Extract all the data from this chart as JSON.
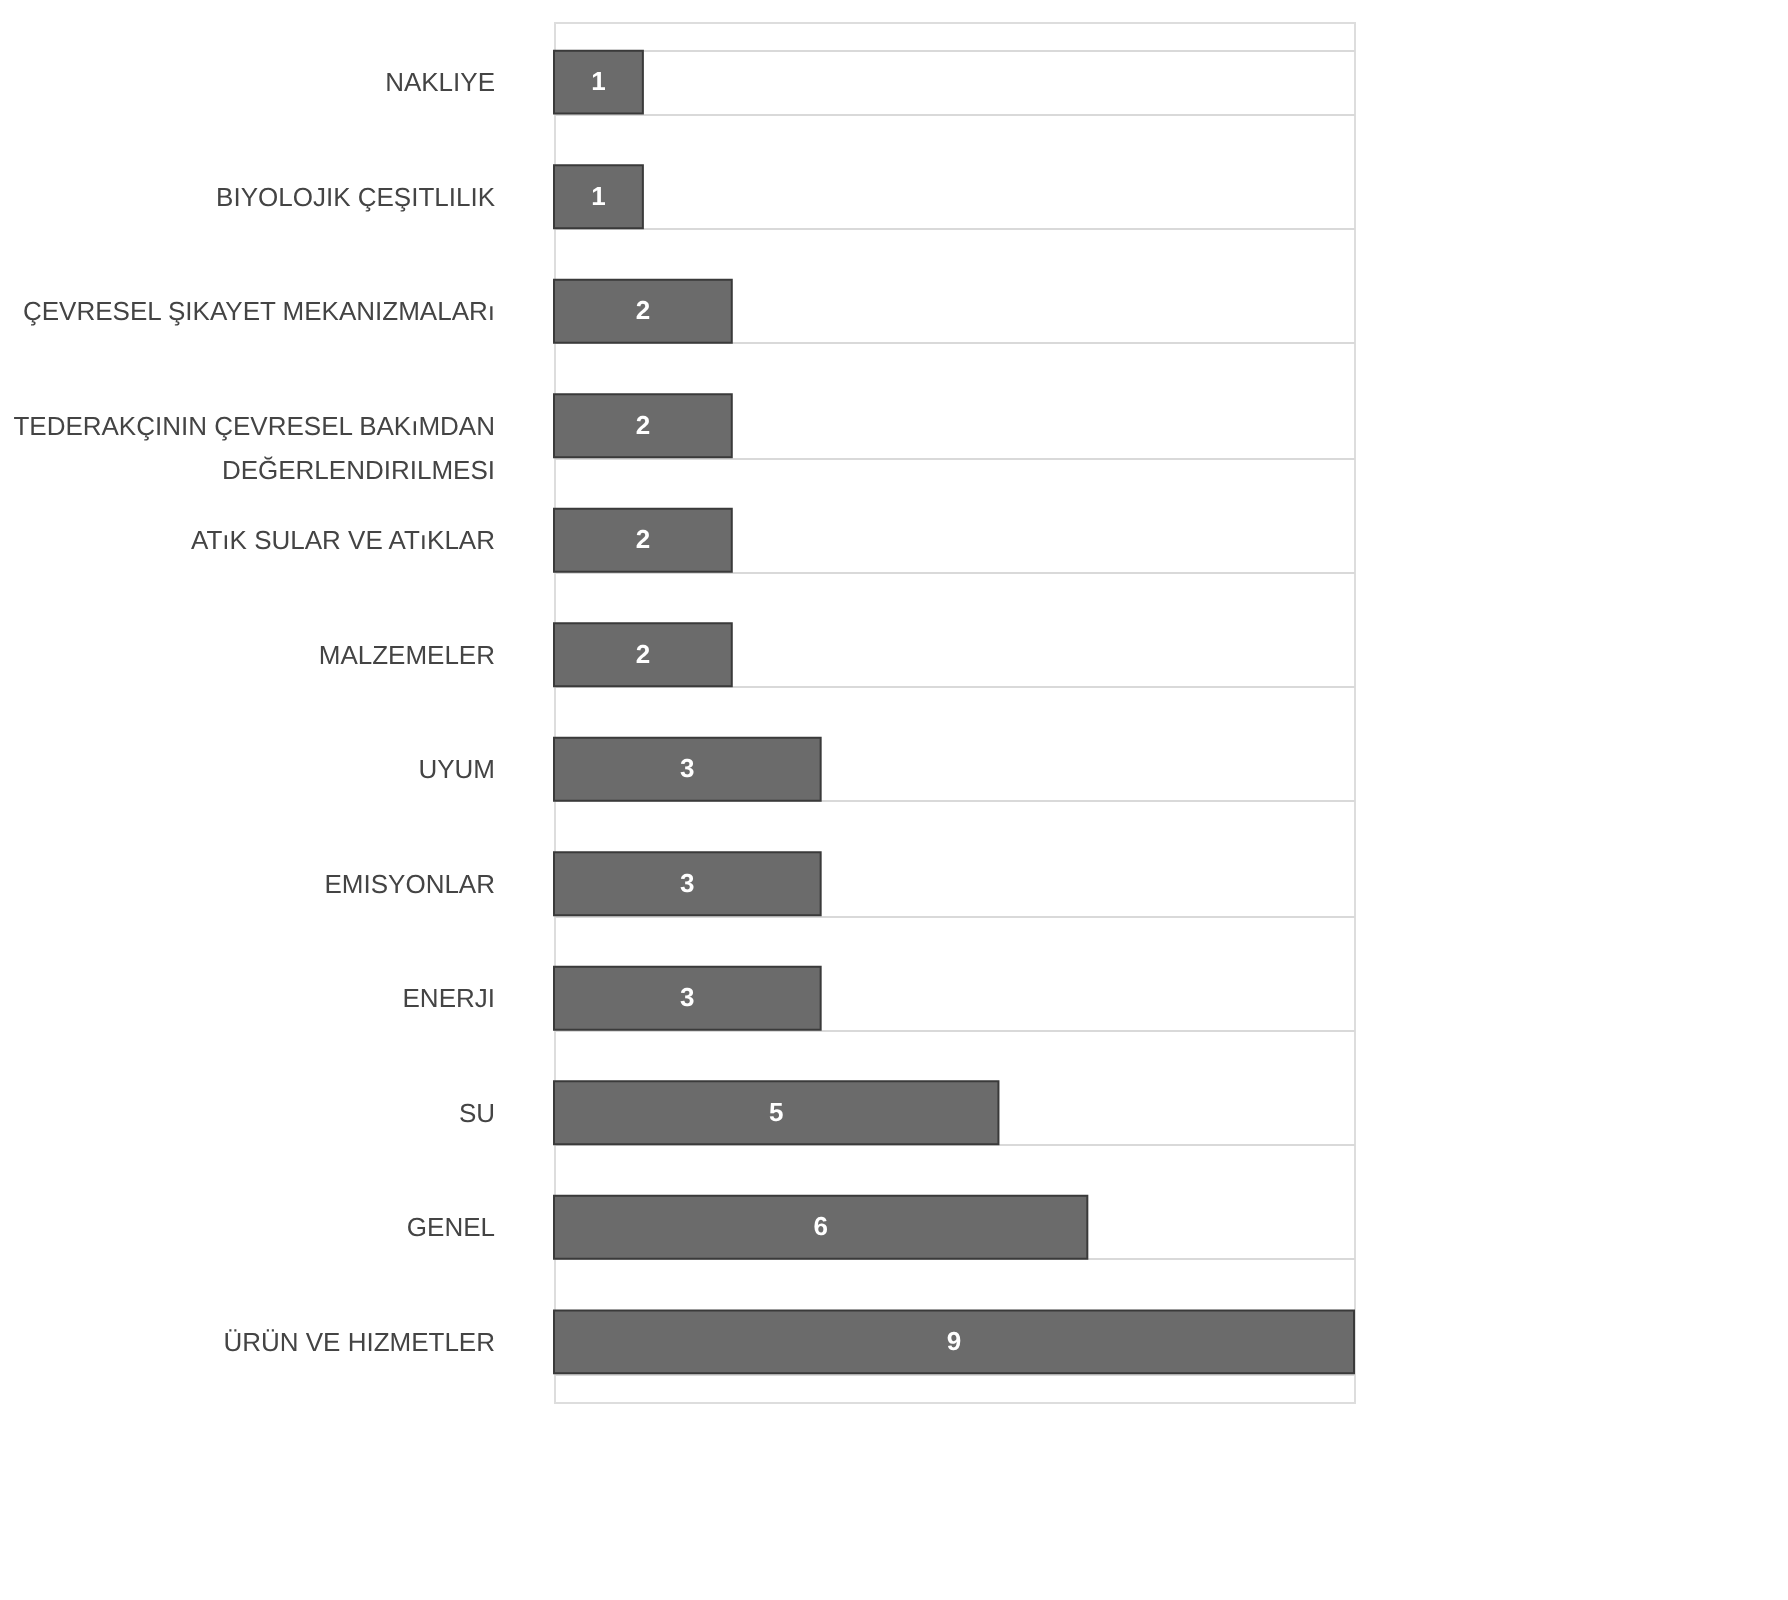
{
  "chart_data": {
    "type": "bar",
    "orientation": "horizontal",
    "categories": [
      "NAKLIYE",
      "BIYOLOJIK ÇEŞITLILIK",
      "ÇEVRESEL ŞIKAYET MEKANIZMALARı",
      "TEDERAKÇININ ÇEVRESEL BAKıMDAN DEĞERLENDIRILMESI",
      "ATıK SULAR VE ATıKLAR",
      "MALZEMELER",
      "UYUM",
      "EMISYONLAR",
      "ENERJI",
      "SU",
      "GENEL",
      "ÜRÜN VE HIZMETLER"
    ],
    "values": [
      1,
      1,
      2,
      2,
      2,
      2,
      3,
      3,
      3,
      5,
      6,
      9
    ],
    "color": "#6b6b6b",
    "data_labels": true,
    "grid": "y"
  }
}
